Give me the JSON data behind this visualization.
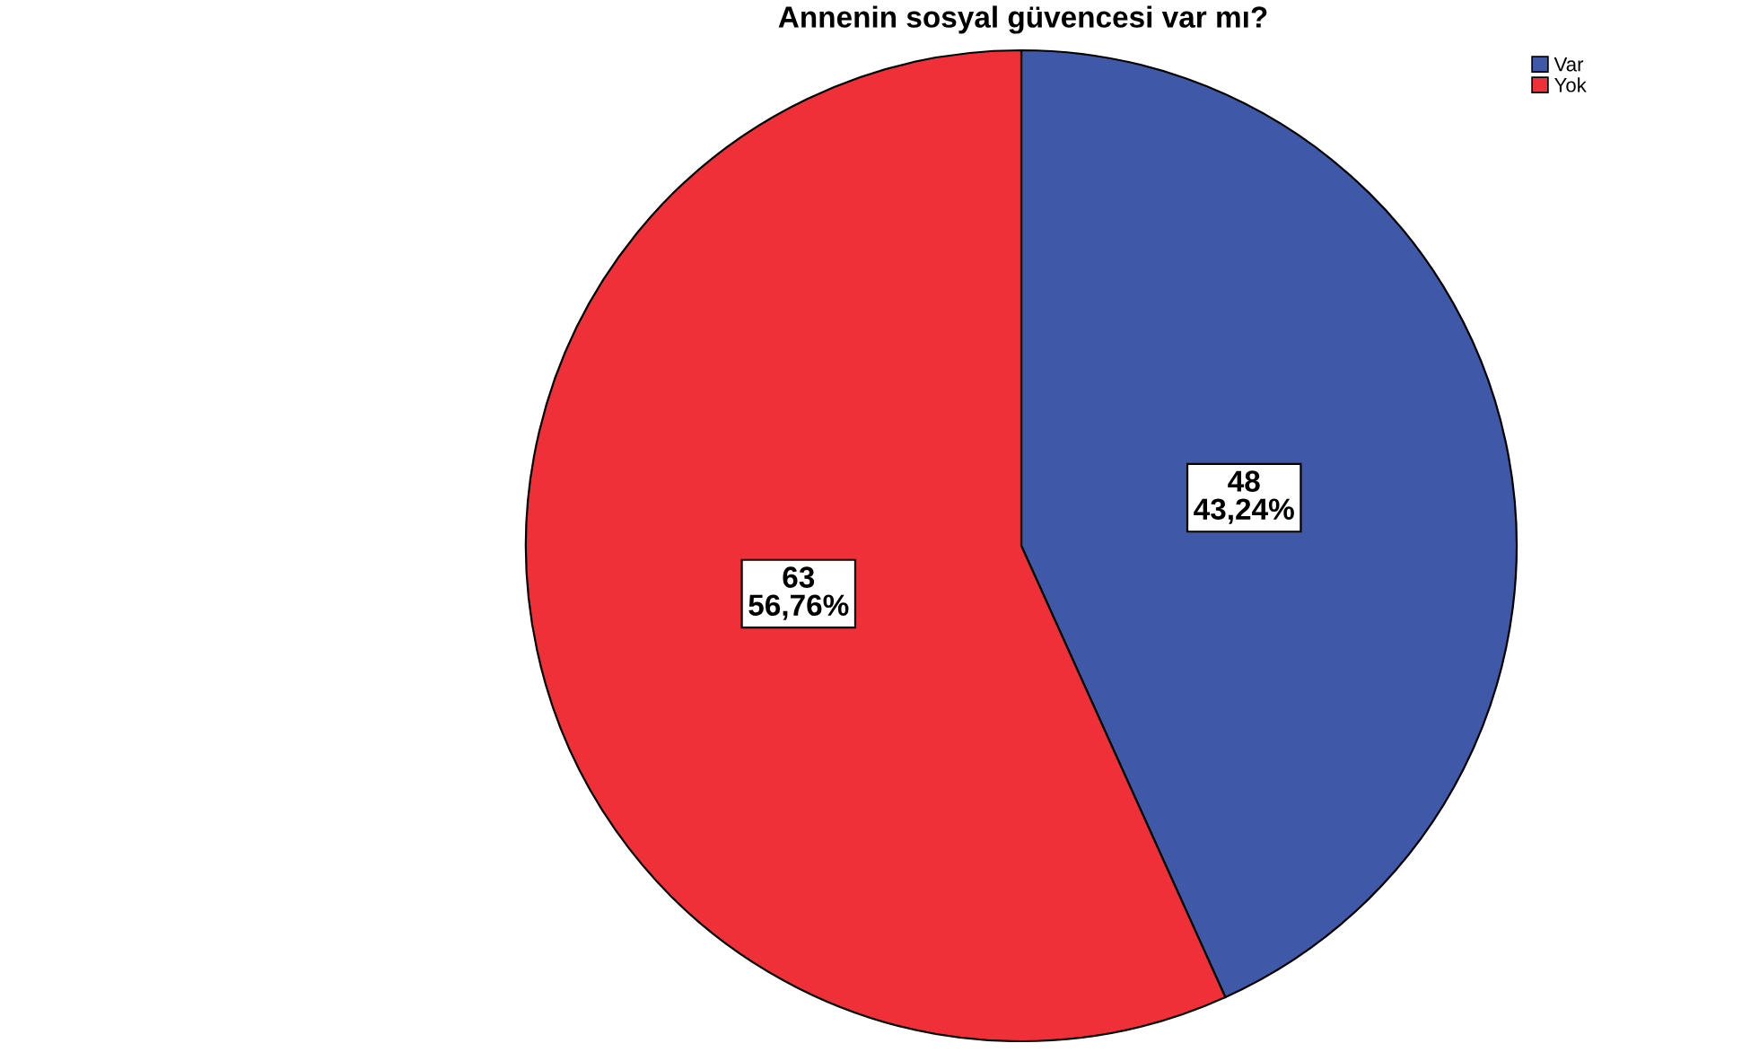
{
  "chart_data": {
    "type": "pie",
    "title": "Annenin sosyal güvencesi var mı?",
    "categories": [
      "Var",
      "Yok"
    ],
    "values": [
      48,
      63
    ],
    "colors": [
      "#3f58a8",
      "#ef3038"
    ],
    "value_labels": [
      "48\n43,24%",
      "63\n56,76%"
    ],
    "legend": "top right"
  }
}
